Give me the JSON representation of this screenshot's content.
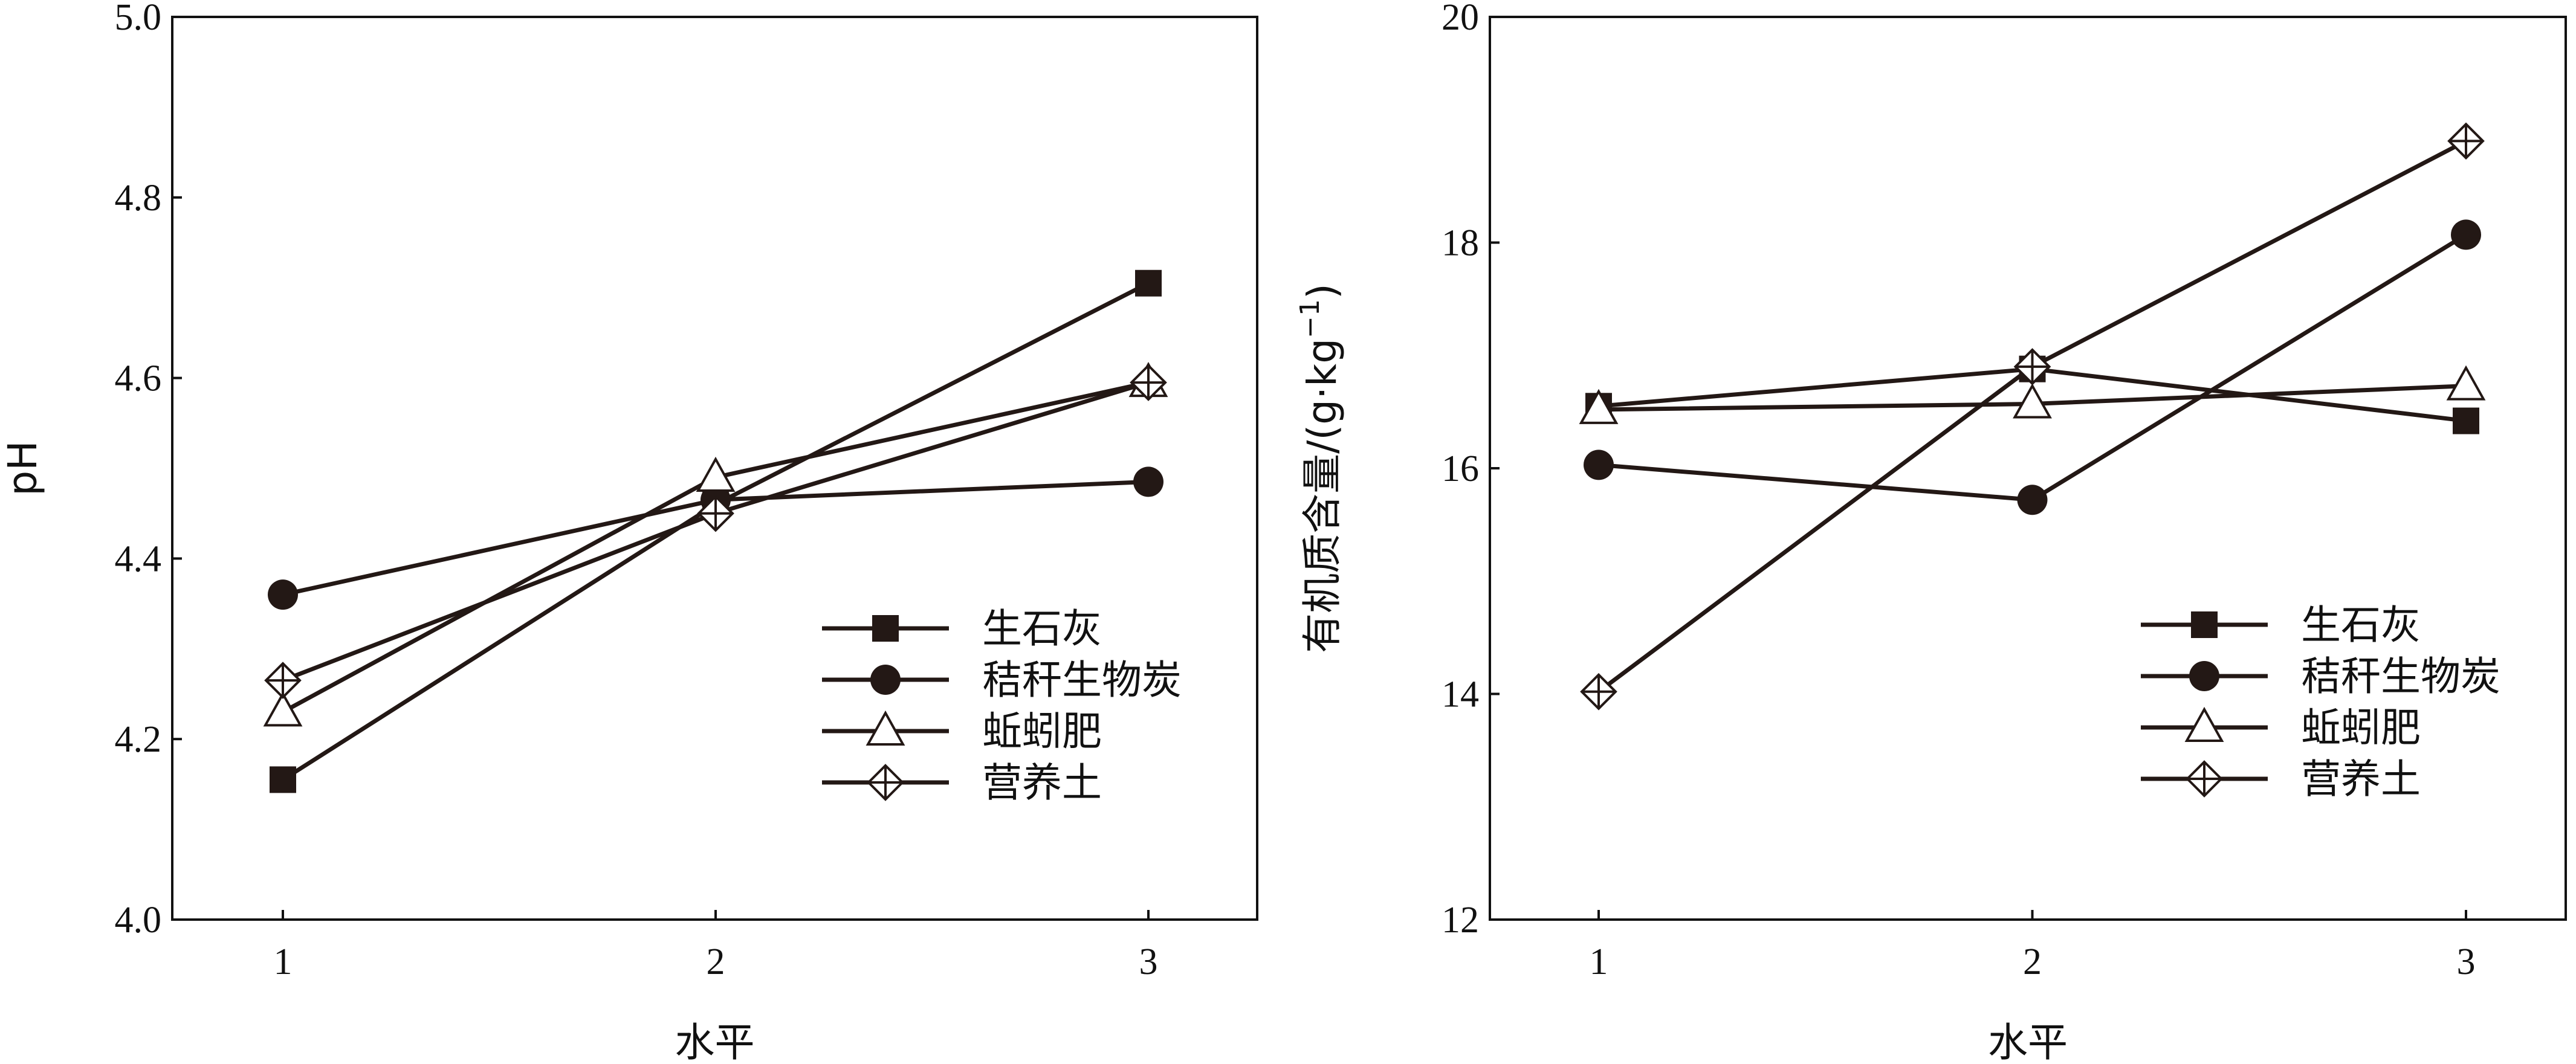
{
  "chart_data": [
    {
      "type": "line",
      "x": [
        1,
        2,
        3
      ],
      "xticks": [
        "1",
        "2",
        "3"
      ],
      "xlabel": "水平",
      "ylabel": "pH",
      "ylim": [
        4.0,
        5.0
      ],
      "yticks": [
        "4.0",
        "4.2",
        "4.4",
        "4.6",
        "4.8",
        "5.0"
      ],
      "legend_position": "bottom-right",
      "series": [
        {
          "name": "生石灰",
          "marker": "square-filled",
          "values": [
            4.155,
            4.46,
            4.705
          ]
        },
        {
          "name": "秸秆生物炭",
          "marker": "circle-filled",
          "values": [
            4.36,
            4.465,
            4.485
          ]
        },
        {
          "name": "蚯蚓肥",
          "marker": "triangle-open",
          "values": [
            4.23,
            4.49,
            4.595
          ]
        },
        {
          "name": "营养土",
          "marker": "diamond-cross",
          "values": [
            4.265,
            4.45,
            4.595
          ]
        }
      ]
    },
    {
      "type": "line",
      "x": [
        1,
        2,
        3
      ],
      "xticks": [
        "1",
        "2",
        "3"
      ],
      "xlabel": "水平",
      "ylabel_main": "有机质含量/(g·kg",
      "ylabel_sup": "−1",
      "ylabel_end": ")",
      "ylim": [
        12,
        20
      ],
      "yticks": [
        "12",
        "14",
        "16",
        "18",
        "20"
      ],
      "legend_position": "bottom-right",
      "series": [
        {
          "name": "生石灰",
          "marker": "square-filled",
          "values": [
            16.55,
            16.88,
            16.42
          ]
        },
        {
          "name": "秸秆生物炭",
          "marker": "circle-filled",
          "values": [
            16.03,
            15.72,
            18.07
          ]
        },
        {
          "name": "蚯蚓肥",
          "marker": "triangle-open",
          "values": [
            16.52,
            16.57,
            16.73
          ]
        },
        {
          "name": "营养土",
          "marker": "diamond-cross",
          "values": [
            14.02,
            16.9,
            18.9
          ]
        }
      ]
    }
  ]
}
